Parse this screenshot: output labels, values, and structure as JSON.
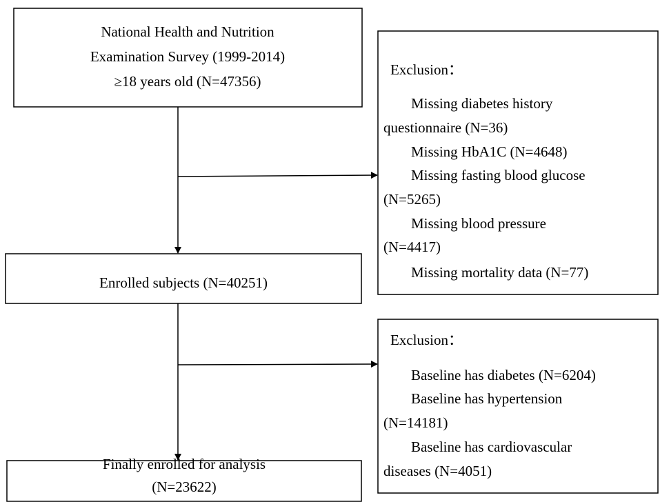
{
  "nodes": [
    {
      "lines": [
        "National Health and Nutrition",
        "Examination Survey (1999-2014)",
        "≥18 years old (N=47356)"
      ]
    },
    {
      "title": "Exclusion：",
      "lines": [
        "Missing diabetes history",
        "questionnaire (N=36)",
        "Missing HbA1C (N=4648)",
        "Missing fasting blood glucose",
        "(N=5265)",
        "Missing blood pressure",
        "(N=4417)",
        "Missing mortality data (N=77)"
      ]
    },
    {
      "lines": [
        "Enrolled subjects (N=40251)"
      ]
    },
    {
      "title": "Exclusion：",
      "lines": [
        "Baseline has diabetes (N=6204)",
        "Baseline has hypertension",
        "(N=14181)",
        "Baseline has cardiovascular",
        "diseases (N=4051)"
      ]
    },
    {
      "lines": [
        "Finally enrolled for analysis",
        "(N=23622)"
      ]
    }
  ]
}
